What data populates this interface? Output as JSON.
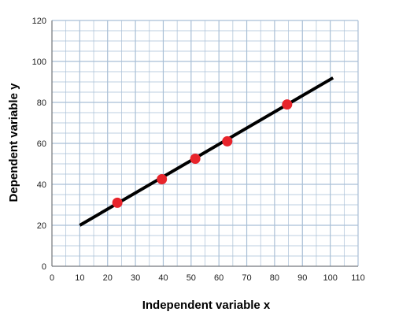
{
  "chart_data": {
    "type": "scatter",
    "title": "",
    "xlabel": "Independent variable x",
    "ylabel": "Dependent variable y",
    "xlim": [
      0,
      110
    ],
    "ylim": [
      0,
      120
    ],
    "x_major_ticks": [
      0,
      10,
      20,
      30,
      40,
      50,
      60,
      70,
      80,
      90,
      100,
      110
    ],
    "y_major_ticks": [
      0,
      20,
      40,
      60,
      80,
      100,
      120
    ],
    "x_minor_step": 5,
    "y_minor_step": 5,
    "grid": true,
    "series": [
      {
        "type": "scatter",
        "x": [
          23.5,
          39.5,
          51.5,
          63,
          84.5
        ],
        "y": [
          31,
          42.5,
          52.5,
          61,
          79
        ]
      },
      {
        "type": "line",
        "x": [
          10,
          101
        ],
        "y": [
          20,
          92
        ]
      }
    ],
    "colors": {
      "grid": "#a9bfd6",
      "axis": "#666666",
      "line": "#000000",
      "points": "#e8242b"
    }
  }
}
